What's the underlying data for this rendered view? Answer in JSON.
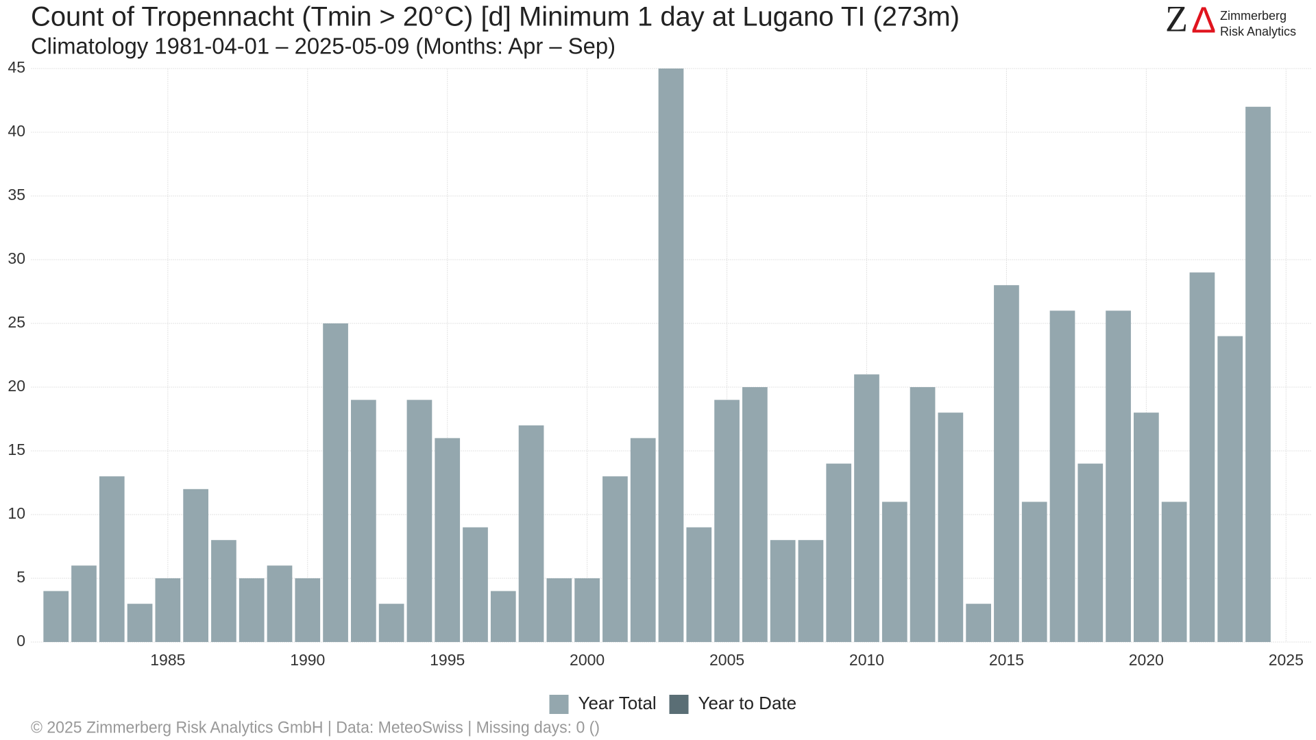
{
  "chart_data": {
    "type": "bar",
    "title": "Count of Tropennacht (Tmin > 20°C) [d] Minimum 1 day at Lugano  TI (273m)",
    "subtitle": "Climatology 1981-04-01 – 2025-05-09 (Months: Apr – Sep)",
    "footer": "©  2025 Zimmerberg Risk Analytics GmbH | Data: MeteoSwiss | Missing days: 0 ()",
    "logo": {
      "letters": [
        "Z",
        "Δ"
      ],
      "lines": [
        "Zimmerberg",
        "Risk Analytics"
      ]
    },
    "x": [
      1981,
      1982,
      1983,
      1984,
      1985,
      1986,
      1987,
      1988,
      1989,
      1990,
      1991,
      1992,
      1993,
      1994,
      1995,
      1996,
      1997,
      1998,
      1999,
      2000,
      2001,
      2002,
      2003,
      2004,
      2005,
      2006,
      2007,
      2008,
      2009,
      2010,
      2011,
      2012,
      2013,
      2014,
      2015,
      2016,
      2017,
      2018,
      2019,
      2020,
      2021,
      2022,
      2023,
      2024
    ],
    "series": [
      {
        "name": "Year Total",
        "color": "#94a7ae",
        "values": [
          4,
          6,
          13,
          3,
          5,
          12,
          8,
          5,
          6,
          5,
          25,
          19,
          3,
          19,
          16,
          9,
          4,
          17,
          5,
          5,
          13,
          16,
          45,
          9,
          19,
          20,
          8,
          8,
          14,
          21,
          11,
          20,
          18,
          3,
          28,
          11,
          26,
          14,
          26,
          18,
          11,
          29,
          24,
          42
        ]
      },
      {
        "name": "Year to Date",
        "color": "#5a6e75",
        "values": [
          null,
          null,
          null,
          null,
          null,
          null,
          null,
          null,
          null,
          null,
          null,
          null,
          null,
          null,
          null,
          null,
          null,
          null,
          null,
          null,
          null,
          null,
          null,
          null,
          null,
          null,
          null,
          null,
          null,
          null,
          null,
          null,
          null,
          null,
          null,
          null,
          null,
          null,
          null,
          null,
          null,
          null,
          null,
          null
        ]
      }
    ],
    "xlim": [
      1980.1,
      2025.9
    ],
    "xticks": [
      1985,
      1990,
      1995,
      2000,
      2005,
      2010,
      2015,
      2020,
      2025
    ],
    "ylim": [
      0,
      45
    ],
    "yticks": [
      0,
      5,
      10,
      15,
      20,
      25,
      30,
      35,
      40,
      45
    ],
    "grid": true,
    "legend": "bottom"
  }
}
